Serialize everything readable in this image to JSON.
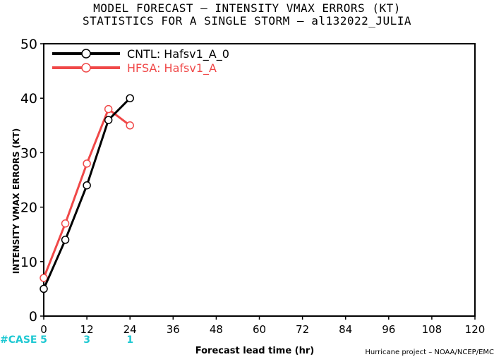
{
  "header": {
    "title_line1": "MODEL FORECAST – INTENSITY VMAX ERRORS (KT)",
    "title_line2": "STATISTICS FOR A SINGLE STORM – al132022_JULIA"
  },
  "footer": {
    "credit": "Hurricane project – NOAA/NCEP/EMC"
  },
  "colors": {
    "cntl": "#000000",
    "hfsa": "#f04848",
    "case": "#1ec8d2"
  },
  "chart_data": {
    "type": "line",
    "xlabel": "Forecast lead time (hr)",
    "ylabel": "INTENSITY VMAX ERRORS (KT)",
    "xlim": [
      0,
      120
    ],
    "ylim": [
      0,
      50
    ],
    "xticks": [
      "0",
      "12",
      "24",
      "36",
      "48",
      "60",
      "72",
      "84",
      "96",
      "108",
      "120"
    ],
    "yticks": [
      "0",
      "10",
      "20",
      "30",
      "40",
      "50"
    ],
    "legend_position": "top-left",
    "case_label": "#CASE",
    "cases": [
      {
        "x": 0,
        "count": "5"
      },
      {
        "x": 12,
        "count": "3"
      },
      {
        "x": 24,
        "count": "1"
      }
    ],
    "series": [
      {
        "name": "CNTL: Hafsv1_A_0",
        "color": "#000000",
        "x": [
          0,
          6,
          12,
          18,
          24
        ],
        "y": [
          5,
          14,
          24,
          36,
          40
        ]
      },
      {
        "name": "HFSA: Hafsv1_A",
        "color": "#f04848",
        "x": [
          0,
          6,
          12,
          18,
          24
        ],
        "y": [
          7,
          17,
          28,
          38,
          35
        ]
      }
    ]
  }
}
